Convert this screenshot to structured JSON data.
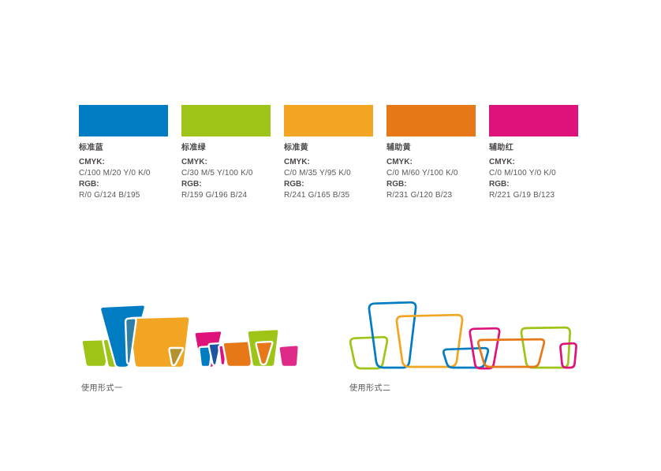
{
  "palette": [
    {
      "name": "标准蓝",
      "cmyk_label": "CMYK:",
      "cmyk": "C/100  M/20  Y/0  K/0",
      "rgb_label": "RGB:",
      "rgb": "R/0  G/124  B/195",
      "hex": "#007CC3"
    },
    {
      "name": "标准绿",
      "cmyk_label": "CMYK:",
      "cmyk": "C/30  M/5  Y/100  K/0",
      "rgb_label": "RGB:",
      "rgb": "R/159  G/196  B/24",
      "hex": "#9FC418"
    },
    {
      "name": "标准黄",
      "cmyk_label": "CMYK:",
      "cmyk": "C/0  M/35  Y/95  K/0",
      "rgb_label": "RGB:",
      "rgb": "R/241  G/165  B/35",
      "hex": "#F1A523"
    },
    {
      "name": "辅助黄",
      "cmyk_label": "CMYK:",
      "cmyk": "C/0  M/60  Y/100  K/0",
      "rgb_label": "RGB:",
      "rgb": "R/231  G/120  B/23",
      "hex": "#E77817"
    },
    {
      "name": "辅助红",
      "cmyk_label": "CMYK:",
      "cmyk": "C/0  M/100  Y/0  K/0",
      "rgb_label": "RGB:",
      "rgb": "R/221  G/19  B/123",
      "hex": "#DD137B"
    }
  ],
  "logo_extra_colors": {
    "teal": "#2F7FA6",
    "olive": "#B5922F",
    "navy": "#1E55A0"
  },
  "usage": {
    "form1_caption": "使用形式一",
    "form2_caption": "使用形式二"
  }
}
